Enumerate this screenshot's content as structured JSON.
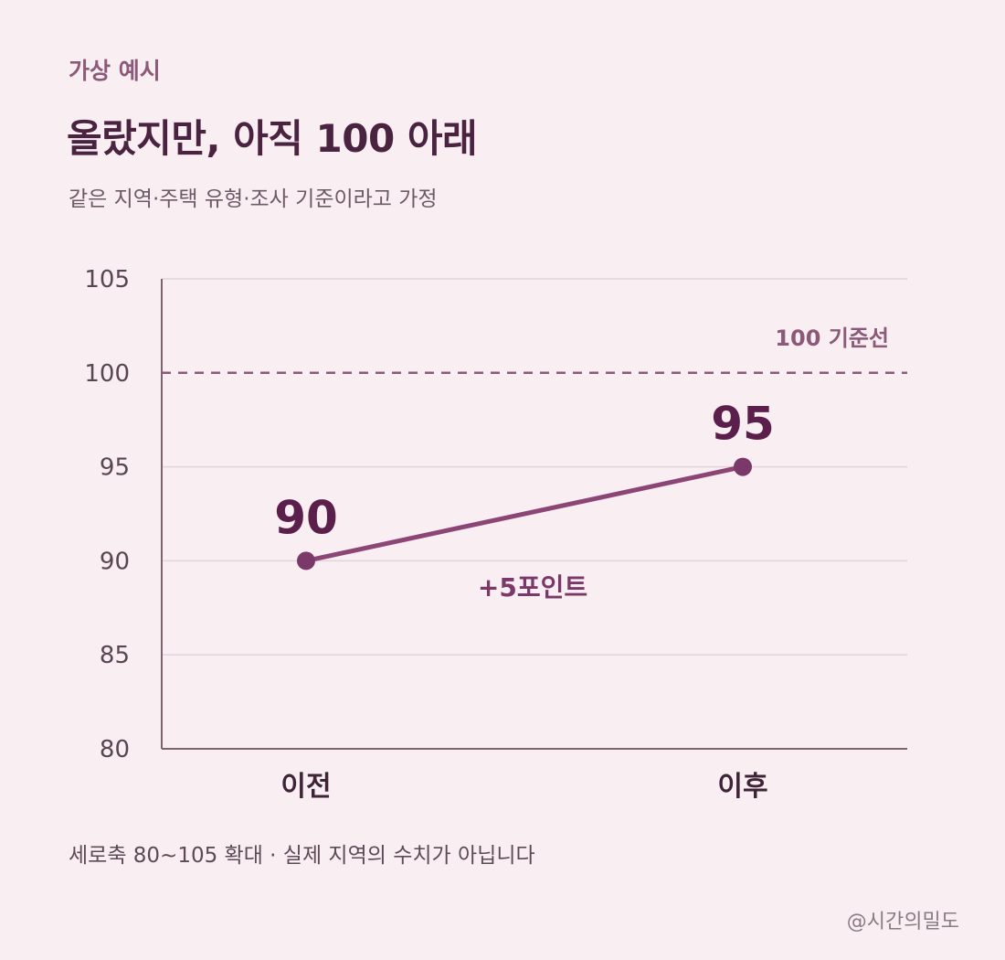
{
  "header": {
    "eyebrow": "가상 예시",
    "title": "올랐지만, 아직 100 아래",
    "subtitle": "같은 지역·주택 유형·조사 기준이라고 가정"
  },
  "chart_data": {
    "type": "line",
    "categories": [
      "이전",
      "이후"
    ],
    "series": [
      {
        "values": [
          90,
          95
        ]
      }
    ],
    "data_labels": [
      "90",
      "95"
    ],
    "ylim": [
      80,
      105
    ],
    "y_ticks": [
      80,
      85,
      90,
      95,
      100,
      105
    ],
    "grid": true,
    "reference_line": {
      "value": 100,
      "label": "100 기준선",
      "style": "dashed"
    },
    "annotation": "+5포인트"
  },
  "footer": {
    "note": "세로축 80~105 확대 · 실제 지역의 수치가 아닙니다",
    "credit": "@시간의밀도"
  },
  "colors": {
    "background": "#f9eef2",
    "line": "#8b4676",
    "dot": "#7a3968",
    "label": "#5a1f4b",
    "grid": "#e3d3db",
    "axis": "#7a6470",
    "reference": "#8a5a78"
  }
}
